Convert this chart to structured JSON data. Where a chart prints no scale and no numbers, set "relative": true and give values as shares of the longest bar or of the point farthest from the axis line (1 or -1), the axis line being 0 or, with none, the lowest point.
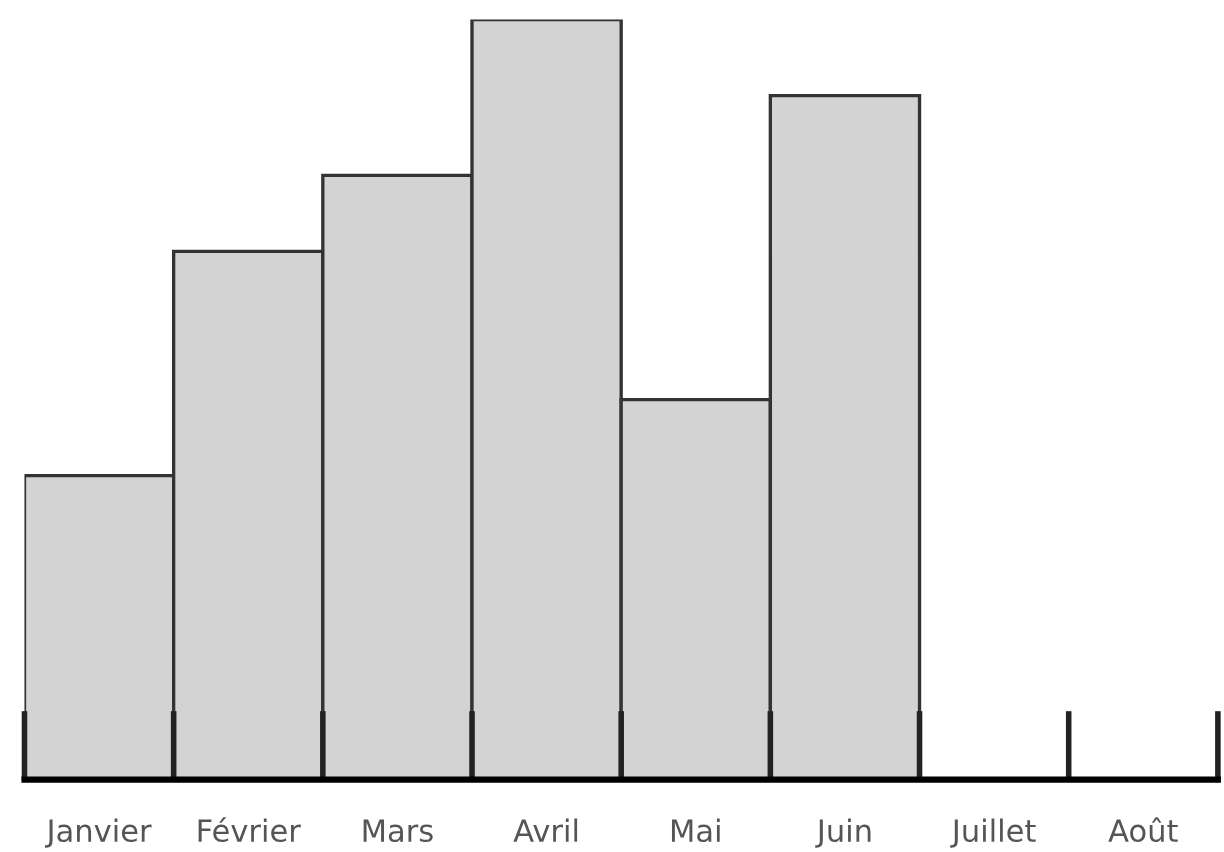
{
  "chart_data": {
    "type": "bar",
    "relative": true,
    "categories": [
      "Janvier",
      "Février",
      "Mars",
      "Avril",
      "Mai",
      "Juin",
      "Juillet",
      "Août"
    ],
    "values": [
      0.4,
      0.695,
      0.795,
      1,
      0.5,
      0.9,
      null,
      null
    ],
    "color": "#d3d3d3",
    "grid": false,
    "legend": false
  }
}
